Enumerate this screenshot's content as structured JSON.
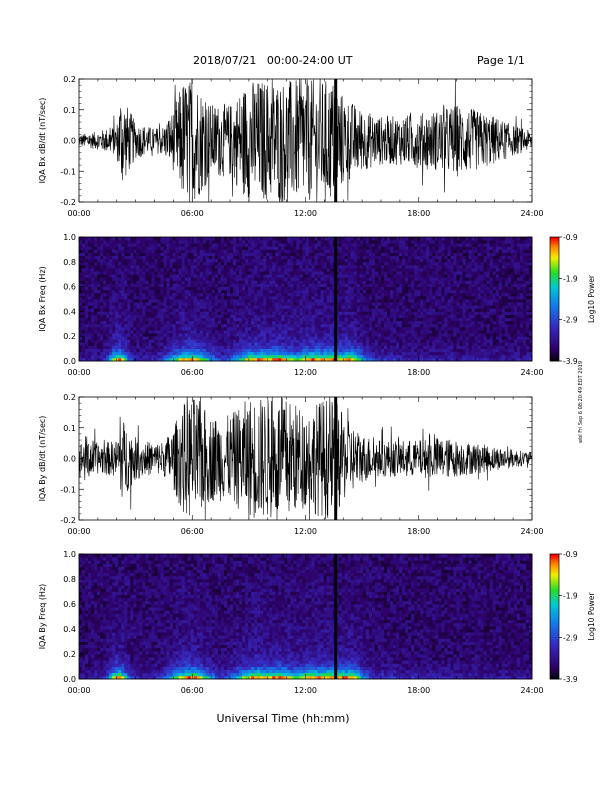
{
  "header": {
    "date_range": "2018/07/21   00:00-24:00 UT",
    "page": "Page 1/1"
  },
  "side_note": "wbl  Fri Sep 6 08:20:49 EDT 2019",
  "xlabel": "Universal Time (hh:mm)",
  "chart_data": [
    {
      "type": "line",
      "name": "iqa-bx-dbdt",
      "ylabel": "IQA Bx dB/dt (nT/sec)",
      "ylim": [
        -0.2,
        0.2
      ],
      "yticks": [
        "0.2",
        "0.1",
        "0.0",
        "-0.1",
        "-0.2"
      ],
      "xlim": [
        0,
        24
      ],
      "xticks": [
        "00:00",
        "06:00",
        "12:00",
        "18:00",
        "24:00"
      ],
      "envelope": {
        "hours": [
          0,
          1,
          2,
          2.2,
          3,
          4,
          4.5,
          5,
          5.5,
          5.9,
          6.2,
          7,
          8,
          9,
          9.5,
          10,
          11,
          12,
          12.5,
          13,
          13.5,
          14,
          15,
          16,
          17,
          18,
          19,
          20,
          21,
          22,
          23,
          24
        ],
        "amplitude": [
          0.02,
          0.03,
          0.05,
          0.16,
          0.06,
          0.04,
          0.05,
          0.1,
          0.2,
          0.2,
          0.2,
          0.12,
          0.12,
          0.2,
          0.2,
          0.2,
          0.2,
          0.2,
          0.2,
          0.2,
          0.2,
          0.15,
          0.1,
          0.08,
          0.08,
          0.09,
          0.1,
          0.12,
          0.1,
          0.08,
          0.05,
          0.03
        ]
      },
      "gap_hours": [
        13.6
      ]
    },
    {
      "type": "heatmap",
      "name": "iqa-bx-spectrogram",
      "ylabel": "IQA Bx Freq (Hz)",
      "ylim": [
        0.0,
        1.0
      ],
      "yticks": [
        "1.0",
        "0.8",
        "0.6",
        "0.4",
        "0.2",
        "0.0"
      ],
      "xlim": [
        0,
        24
      ],
      "xticks": [
        "00:00",
        "06:00",
        "12:00",
        "18:00",
        "24:00"
      ],
      "colorbar": {
        "label": "Log10 Power",
        "ticks": [
          "-0.9",
          "-1.9",
          "-2.9",
          "-3.9"
        ],
        "range": [
          -3.9,
          -0.9
        ]
      },
      "gap_hours": [
        13.6
      ]
    },
    {
      "type": "line",
      "name": "iqa-by-dbdt",
      "ylabel": "IQA By dB/dt (nT/sec)",
      "ylim": [
        -0.2,
        0.2
      ],
      "yticks": [
        "0.2",
        "0.1",
        "0.0",
        "-0.1",
        "-0.2"
      ],
      "xlim": [
        0,
        24
      ],
      "xticks": [
        "00:00",
        "06:00",
        "12:00",
        "18:00",
        "24:00"
      ],
      "envelope": {
        "hours": [
          0,
          0.3,
          1,
          2,
          2.2,
          3,
          4,
          4.5,
          5,
          5.5,
          5.9,
          6.2,
          7,
          8,
          9,
          9.5,
          10,
          11,
          12,
          12.5,
          13,
          13.5,
          14,
          15,
          16,
          17,
          18,
          19,
          20,
          21,
          22,
          23,
          24
        ],
        "amplitude": [
          0.04,
          0.08,
          0.05,
          0.06,
          0.14,
          0.07,
          0.05,
          0.06,
          0.1,
          0.18,
          0.2,
          0.2,
          0.14,
          0.14,
          0.2,
          0.2,
          0.2,
          0.2,
          0.16,
          0.18,
          0.2,
          0.2,
          0.14,
          0.08,
          0.06,
          0.06,
          0.06,
          0.07,
          0.06,
          0.05,
          0.04,
          0.03,
          0.02
        ]
      },
      "gap_hours": [
        13.6
      ]
    },
    {
      "type": "heatmap",
      "name": "iqa-by-spectrogram",
      "ylabel": "IQA By Freq (Hz)",
      "ylim": [
        0.0,
        1.0
      ],
      "yticks": [
        "1.0",
        "0.8",
        "0.6",
        "0.4",
        "0.2",
        "0.0"
      ],
      "xlim": [
        0,
        24
      ],
      "xticks": [
        "00:00",
        "06:00",
        "12:00",
        "18:00",
        "24:00"
      ],
      "colorbar": {
        "label": "Log10 Power",
        "ticks": [
          "-0.9",
          "-1.9",
          "-2.9",
          "-3.9"
        ],
        "range": [
          -3.9,
          -0.9
        ]
      },
      "gap_hours": [
        13.6
      ]
    }
  ]
}
